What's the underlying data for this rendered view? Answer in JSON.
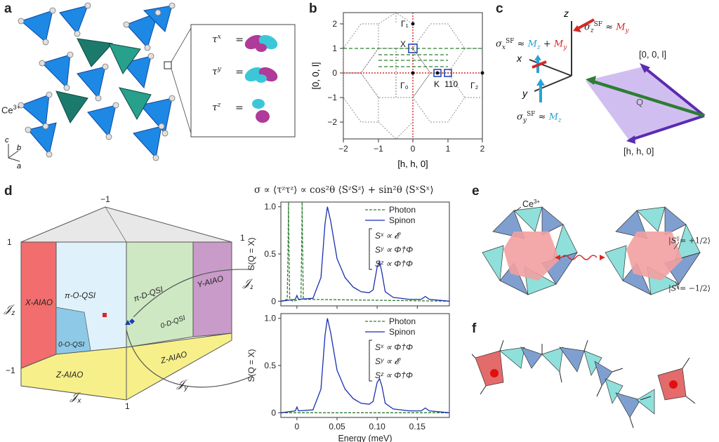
{
  "panels": {
    "a": {
      "label": "a",
      "ion": "Ce",
      "ion_sup": "3+",
      "axes": [
        "c",
        "b",
        "a"
      ],
      "inset": [
        {
          "lhs": "τ",
          "sup": "x",
          "eq": "="
        },
        {
          "lhs": "τ",
          "sup": "y",
          "eq": "="
        },
        {
          "lhs": "τ",
          "sup": "z",
          "eq": "="
        }
      ],
      "colors": {
        "tetra_blue": "#1e88e5",
        "tetra_green": "#1c7a6c",
        "orbital_magenta": "#b03a9a",
        "orbital_cyan": "#3cc7d9"
      }
    },
    "b": {
      "label": "b",
      "xlabel": "[h, h, 0]",
      "ylabel": "[0, 0, l]",
      "xticks": [
        "−2",
        "−1",
        "0",
        "1",
        "2"
      ],
      "yticks": [
        "2",
        "1",
        "0",
        "−1",
        "−2"
      ],
      "points": [
        "Γ₁",
        "X",
        "Γ₀",
        "K",
        "110",
        "Γ₂"
      ],
      "colors": {
        "red_dotted": "#d62828",
        "green_dashed": "#2e7d32",
        "marker_blue": "#1a3fb0"
      }
    },
    "c": {
      "label": "c",
      "axis_z": "z",
      "axis_x": "x",
      "axis_y": "y",
      "sigma_z": {
        "sym": "σ",
        "sub": "z",
        "sup": "SF",
        "rel": "≈",
        "rhs": "M",
        "rhs_sub": "y"
      },
      "sigma_x": {
        "sym": "σ",
        "sub": "x",
        "sup": "SF",
        "rel": "≈",
        "rhs1": "M",
        "rhs1_sub": "z",
        "plus": "+",
        "rhs2": "M",
        "rhs2_sub": "y"
      },
      "sigma_y": {
        "sym": "σ",
        "sub": "y",
        "sup": "SF",
        "rel": "≈",
        "rhs": "M",
        "rhs_sub": "z"
      },
      "dir_top": "[0, 0, l]",
      "dir_bottom": "[h, h, 0]",
      "q_label": "Q",
      "colors": {
        "mz_cyan": "#29a3d6",
        "my_red": "#d62828",
        "q_green": "#2e7d32",
        "plane_purple": "#c9b3ef",
        "arrow_purple": "#5b2bb0"
      }
    },
    "d": {
      "label": "d",
      "corner_top": "−1",
      "corner_right": "1",
      "corner_left_top": "1",
      "corner_left_bottom": "−1",
      "corner_bottom": "1",
      "jz_label_left": "𝒥",
      "jz_label_right": "𝒥",
      "jx_label": "𝒥",
      "jy_label": "𝒥",
      "sub_z": "z",
      "sub_x": "x",
      "sub_y": "y",
      "phases": {
        "x_aiao": "X-AIAO",
        "pi_o_qsi": "π-O-QSI",
        "zero_o_qsi": "0-O-QSI",
        "pi_d_qsi": "π-D-QSI",
        "zero_d_qsi": "0-D-QSI",
        "y_aiao": "Y-AIAO",
        "z_aiao_front": "Z-AIAO",
        "z_aiao_right": "Z-AIAO"
      },
      "colors": {
        "x_aiao": "#f26d6d",
        "y_aiao": "#c99bc9",
        "z_aiao": "#f7f08a",
        "o_qsi": "#dff2fb",
        "zero_o": "#8ec9e8",
        "d_qsi": "#cfe8c4",
        "top": "#e8e8e8"
      }
    },
    "e": {
      "label": "e",
      "ion": "Ce",
      "ion_sup": "3+",
      "spin_up": "|S",
      "spin_up_val": "= +1/2⟩",
      "spin_down": "|S",
      "spin_down_val": "= −1/2⟩",
      "par": "||",
      "colors": {
        "blue_tetra": "#7f9fd0",
        "cyan_tetra": "#8fe0db",
        "hex_red": "#f2a0a0",
        "wave_red": "#d62828"
      }
    },
    "f": {
      "label": "f",
      "colors": {
        "red_tetra": "#e46b6b",
        "blue_tetra": "#7f9fd0",
        "cyan_tetra": "#8fe0db",
        "dot_red": "#e01010"
      }
    }
  },
  "formula": {
    "text": "σ ∝ ⟨τᶻτᶻ⟩ ∝ cos²θ ⟨SᶻSᶻ⟩ + sin²θ ⟨SˣSˣ⟩"
  },
  "chart_data": [
    {
      "type": "line",
      "title": "",
      "xlabel": "",
      "ylabel": "S(Q = X)",
      "xlim": [
        -0.02,
        0.19
      ],
      "ylim": [
        -0.05,
        1.05
      ],
      "yticks": [
        "0",
        "0.5",
        "1.0"
      ],
      "legend": {
        "position": "top-right",
        "entries": [
          "Photon",
          "Spinon"
        ]
      },
      "annotations": [
        "Sˣ ∝ 𝓔",
        "Sʸ ∝ Φ†Φ",
        "Sᶻ ∝ Φ†Φ"
      ],
      "series": [
        {
          "name": "Photon",
          "style": "dashed",
          "color": "#2e7d32",
          "x": [
            -0.02,
            -0.012,
            -0.011,
            -0.0105,
            -0.01,
            -0.009,
            -0.005,
            0.005,
            0.006,
            0.0065,
            0.007,
            0.008,
            0.19
          ],
          "y": [
            0,
            0.02,
            0.6,
            1.05,
            0.6,
            0.02,
            0,
            0.02,
            0.6,
            1.05,
            0.6,
            0.02,
            0
          ]
        },
        {
          "name": "Spinon",
          "style": "solid",
          "color": "#1a2fb0",
          "x": [
            -0.02,
            -0.002,
            0.0,
            0.002,
            0.02,
            0.03,
            0.035,
            0.038,
            0.042,
            0.05,
            0.06,
            0.07,
            0.08,
            0.09,
            0.095,
            0.1,
            0.103,
            0.106,
            0.11,
            0.12,
            0.14,
            0.155,
            0.16,
            0.165,
            0.19
          ],
          "y": [
            0.0,
            0.02,
            0.06,
            0.02,
            0.03,
            0.25,
            0.82,
            1.0,
            0.85,
            0.45,
            0.25,
            0.15,
            0.1,
            0.09,
            0.12,
            0.36,
            0.42,
            0.3,
            0.1,
            0.04,
            0.02,
            0.02,
            0.05,
            0.02,
            0.0
          ]
        }
      ]
    },
    {
      "type": "line",
      "title": "",
      "xlabel": "Energy (meV)",
      "ylabel": "S(Q = X)",
      "xlim": [
        -0.02,
        0.19
      ],
      "ylim": [
        -0.05,
        1.05
      ],
      "xticks": [
        "0",
        "0.05",
        "0.10",
        "0.15"
      ],
      "yticks": [
        "0",
        "0.5",
        "1.0"
      ],
      "legend": {
        "position": "top-right",
        "entries": [
          "Photon",
          "Spinon"
        ]
      },
      "annotations": [
        "Sˣ ∝ Φ†Φ",
        "Sʸ ∝ 𝓔",
        "Sᶻ ∝ Φ†Φ"
      ],
      "series": [
        {
          "name": "Photon",
          "style": "dashed",
          "color": "#2e7d32",
          "x": [
            -0.02,
            0.19
          ],
          "y": [
            0,
            0
          ]
        },
        {
          "name": "Spinon",
          "style": "solid",
          "color": "#1a2fb0",
          "x": [
            -0.02,
            -0.002,
            0.0,
            0.002,
            0.02,
            0.03,
            0.035,
            0.038,
            0.042,
            0.05,
            0.06,
            0.07,
            0.08,
            0.09,
            0.095,
            0.1,
            0.103,
            0.106,
            0.11,
            0.12,
            0.14,
            0.155,
            0.16,
            0.165,
            0.19
          ],
          "y": [
            0.0,
            0.02,
            0.06,
            0.02,
            0.03,
            0.25,
            0.82,
            1.0,
            0.85,
            0.45,
            0.25,
            0.15,
            0.1,
            0.09,
            0.12,
            0.32,
            0.36,
            0.28,
            0.1,
            0.04,
            0.02,
            0.02,
            0.05,
            0.02,
            0.0
          ]
        }
      ]
    }
  ]
}
